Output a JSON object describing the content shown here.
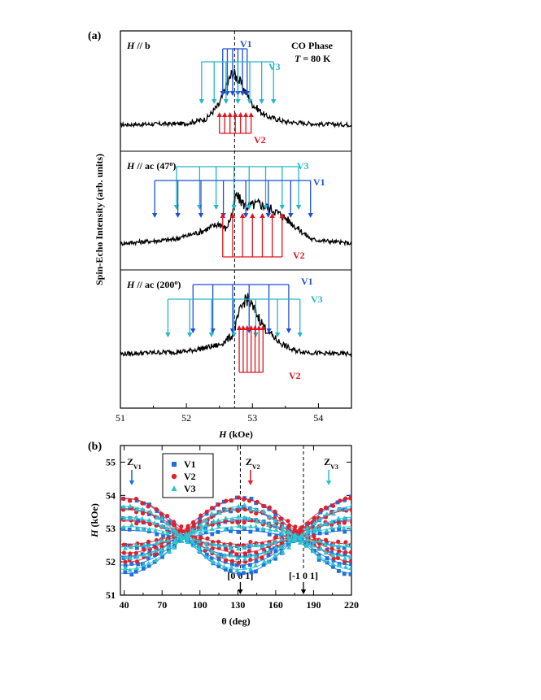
{
  "chart_data": [
    {
      "type": "line",
      "panel_label": "(a)",
      "xlabel_italic": "H",
      "xlabel_rest": " (kOe)",
      "ylabel": "Spin-Echo Intensity (arb. units)",
      "xlim": [
        51,
        54.5
      ],
      "xticks": [
        51,
        52,
        53,
        54
      ],
      "x_dashed_line": 52.73,
      "colors": {
        "V1": "#1f4fd8",
        "V2": "#e0141e",
        "V3": "#22b8c8",
        "spectrum": "#000000"
      },
      "subpanels": [
        {
          "label_italic": "H",
          "label_rest": " // b",
          "annotation_line1": "CO Phase",
          "annotation_line2_italic": "T",
          "annotation_line2_rest": " = 80 K",
          "spectrum": [
            [
              51,
              0.05
            ],
            [
              52,
              0.07
            ],
            [
              52.3,
              0.15
            ],
            [
              52.5,
              0.4
            ],
            [
              52.6,
              0.7
            ],
            [
              52.7,
              0.95
            ],
            [
              52.8,
              0.8
            ],
            [
              52.9,
              0.6
            ],
            [
              53.0,
              0.4
            ],
            [
              53.2,
              0.2
            ],
            [
              53.5,
              0.1
            ],
            [
              54.0,
              0.06
            ],
            [
              54.5,
              0.05
            ]
          ],
          "sticks": [
            {
              "site": "V1",
              "name": "V1",
              "direction": "down",
              "positions": [
                52.55,
                52.62,
                52.7,
                52.78,
                52.85,
                52.92
              ]
            },
            {
              "site": "V3",
              "name": "V3",
              "direction": "down",
              "positions": [
                52.23,
                52.42,
                52.6,
                52.78,
                52.96,
                53.14,
                53.32
              ]
            },
            {
              "site": "V2",
              "name": "V2",
              "direction": "up",
              "positions": [
                52.5,
                52.58,
                52.66,
                52.74,
                52.82,
                52.9,
                52.98
              ]
            }
          ]
        },
        {
          "label_italic": "H",
          "label_rest": " // ac (47",
          "label_sup": "o",
          "label_close": ")",
          "spectrum": [
            [
              51,
              0.05
            ],
            [
              51.8,
              0.12
            ],
            [
              52.2,
              0.25
            ],
            [
              52.5,
              0.4
            ],
            [
              52.6,
              0.3
            ],
            [
              52.7,
              0.6
            ],
            [
              52.75,
              0.9
            ],
            [
              52.9,
              0.7
            ],
            [
              53.1,
              0.75
            ],
            [
              53.3,
              0.65
            ],
            [
              53.5,
              0.5
            ],
            [
              53.7,
              0.3
            ],
            [
              53.9,
              0.12
            ],
            [
              54.5,
              0.05
            ]
          ],
          "sticks": [
            {
              "site": "V3",
              "name": "V3",
              "direction": "down",
              "positions": [
                51.85,
                52.2,
                52.45,
                52.72,
                52.95,
                53.2,
                53.45,
                53.7
              ]
            },
            {
              "site": "V1",
              "name": "V1",
              "direction": "down",
              "positions": [
                51.52,
                51.87,
                52.22,
                52.56,
                52.9,
                53.24,
                53.58,
                53.88
              ]
            },
            {
              "site": "V2",
              "name": "V2",
              "direction": "up",
              "positions": [
                52.55,
                52.7,
                52.85,
                53.0,
                53.15,
                53.3,
                53.45
              ]
            }
          ]
        },
        {
          "label_italic": "H",
          "label_rest": " // ac (200",
          "label_sup": "o",
          "label_close": ")",
          "spectrum": [
            [
              51,
              0.06
            ],
            [
              52,
              0.1
            ],
            [
              52.5,
              0.2
            ],
            [
              52.7,
              0.35
            ],
            [
              52.8,
              0.7
            ],
            [
              52.9,
              0.95
            ],
            [
              53.0,
              0.8
            ],
            [
              53.2,
              0.45
            ],
            [
              53.4,
              0.25
            ],
            [
              53.6,
              0.12
            ],
            [
              54,
              0.07
            ],
            [
              54.5,
              0.06
            ]
          ],
          "sticks": [
            {
              "site": "V1",
              "name": "V1",
              "direction": "down",
              "positions": [
                52.1,
                52.4,
                52.7,
                52.95,
                53.25,
                53.55
              ]
            },
            {
              "site": "V3",
              "name": "V3",
              "direction": "down",
              "positions": [
                51.72,
                52.05,
                52.38,
                52.72,
                53.05,
                53.38,
                53.72
              ]
            },
            {
              "site": "V2",
              "name": "V2",
              "direction": "up",
              "positions": [
                52.8,
                52.86,
                52.92,
                52.98,
                53.04,
                53.1,
                53.16
              ]
            }
          ]
        }
      ]
    },
    {
      "type": "scatter",
      "panel_label": "(b)",
      "xlabel": "θ (deg)",
      "ylabel_italic": "H",
      "ylabel_rest": " (kOe)",
      "xlim": [
        37,
        220
      ],
      "ylim": [
        51,
        55.5
      ],
      "xticks": [
        40,
        70,
        100,
        130,
        160,
        190,
        220
      ],
      "yticks": [
        51,
        52,
        53,
        54,
        55
      ],
      "legend": {
        "placement": "top-left"
      },
      "dashed_lines": [
        {
          "x": 132,
          "label": "[0 0 1]"
        },
        {
          "x": 182,
          "label": "[-1 0 1]"
        }
      ],
      "series": [
        {
          "name": "V1",
          "marker": "square",
          "color": "#1f6fe0",
          "curves": [
            {
              "center": 52.78,
              "amplitude": 1.13,
              "peak_theta": 42
            },
            {
              "center": 52.75,
              "amplitude": 0.85,
              "peak_theta": 42
            },
            {
              "center": 52.72,
              "amplitude": 0.55,
              "peak_theta": 42
            },
            {
              "center": 52.7,
              "amplitude": 0.25,
              "peak_theta": 42
            }
          ],
          "arrow": {
            "theta": 46,
            "label_main": "Z",
            "label_sub": "V1"
          }
        },
        {
          "name": "V2",
          "marker": "circle",
          "color": "#e0202a",
          "curves": [
            {
              "center": 52.95,
              "amplitude": 0.95,
              "peak_theta": 132
            },
            {
              "center": 52.92,
              "amplitude": 0.65,
              "peak_theta": 132
            },
            {
              "center": 52.88,
              "amplitude": 0.35,
              "peak_theta": 132
            }
          ],
          "arrow": {
            "theta": 140,
            "label_main": "Z",
            "label_sub": "V2"
          }
        },
        {
          "name": "V3",
          "marker": "triangle",
          "color": "#2ec4cc",
          "curves": [
            {
              "center": 52.72,
              "amplitude": 0.95,
              "peak_theta": 222
            },
            {
              "center": 52.74,
              "amplitude": 0.6,
              "peak_theta": 222
            },
            {
              "center": 52.76,
              "amplitude": 0.3,
              "peak_theta": 222
            }
          ],
          "arrow": {
            "theta": 202,
            "label_main": "Z",
            "label_sub": "V3"
          }
        }
      ]
    }
  ]
}
